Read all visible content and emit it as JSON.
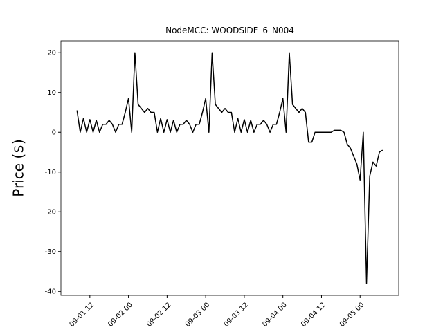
{
  "chart_data": {
    "type": "line",
    "title": "NodeMCC: WOODSIDE_6_N004",
    "ylabel": "Price ($)",
    "x": [
      "09-01 08",
      "09-01 09",
      "09-01 10",
      "09-01 11",
      "09-01 12",
      "09-01 13",
      "09-01 14",
      "09-01 15",
      "09-01 16",
      "09-01 17",
      "09-01 18",
      "09-01 19",
      "09-01 20",
      "09-01 21",
      "09-01 22",
      "09-01 23",
      "09-02 00",
      "09-02 01",
      "09-02 02",
      "09-02 03",
      "09-02 04",
      "09-02 05",
      "09-02 06",
      "09-02 07",
      "09-02 08",
      "09-02 09",
      "09-02 10",
      "09-02 11",
      "09-02 12",
      "09-02 13",
      "09-02 14",
      "09-02 15",
      "09-02 16",
      "09-02 17",
      "09-02 18",
      "09-02 19",
      "09-02 20",
      "09-02 21",
      "09-02 22",
      "09-02 23",
      "09-03 00",
      "09-03 01",
      "09-03 02",
      "09-03 03",
      "09-03 04",
      "09-03 05",
      "09-03 06",
      "09-03 07",
      "09-03 08",
      "09-03 09",
      "09-03 10",
      "09-03 11",
      "09-03 12",
      "09-03 13",
      "09-03 14",
      "09-03 15",
      "09-03 16",
      "09-03 17",
      "09-03 18",
      "09-03 19",
      "09-03 20",
      "09-03 21",
      "09-03 22",
      "09-03 23",
      "09-04 00",
      "09-04 01",
      "09-04 02",
      "09-04 03",
      "09-04 04",
      "09-04 05",
      "09-04 06",
      "09-04 07",
      "09-04 08",
      "09-04 09",
      "09-04 10",
      "09-04 11",
      "09-04 12",
      "09-04 13",
      "09-04 14",
      "09-04 15",
      "09-04 16",
      "09-04 17",
      "09-04 18",
      "09-04 19",
      "09-04 20",
      "09-04 21",
      "09-04 22",
      "09-04 23",
      "09-05 00",
      "09-05 01",
      "09-05 02",
      "09-05 03",
      "09-05 04",
      "09-05 05",
      "09-05 06",
      "09-05 07"
    ],
    "series": [
      {
        "color": "#000000",
        "values": [
          5.5,
          0,
          3.5,
          0,
          3.2,
          0,
          3,
          0,
          2,
          2,
          3,
          2,
          0,
          2,
          2,
          5,
          8.5,
          0,
          20,
          7,
          6,
          5,
          6,
          5,
          5,
          0,
          3.5,
          0,
          3.2,
          0,
          3,
          0,
          2,
          2,
          3,
          2,
          0,
          2,
          2,
          5,
          8.5,
          0,
          20,
          7,
          6,
          5,
          6,
          5,
          5,
          0,
          3.5,
          0,
          3.2,
          0,
          3,
          0,
          2,
          2,
          3,
          2,
          0,
          2,
          2,
          5,
          8.5,
          0,
          20,
          7,
          6,
          5,
          6,
          5,
          -2.5,
          -2.5,
          0,
          0,
          0,
          0,
          0,
          0,
          0.5,
          0.5,
          0.5,
          0,
          -3,
          -4,
          -6,
          -8,
          -12,
          0,
          -38,
          -11,
          -7.5,
          -8.5,
          -5,
          -4.5
        ]
      }
    ],
    "xlim": [
      "09-01 03",
      "09-05 12"
    ],
    "xticks": [
      "09-01 12",
      "09-02 00",
      "09-02 12",
      "09-03 00",
      "09-03 12",
      "09-04 00",
      "09-04 12",
      "09-05 00"
    ],
    "ylim": [
      -41,
      23
    ],
    "yticks": [
      -40,
      -30,
      -20,
      -10,
      0,
      10,
      20
    ],
    "grid": false
  }
}
